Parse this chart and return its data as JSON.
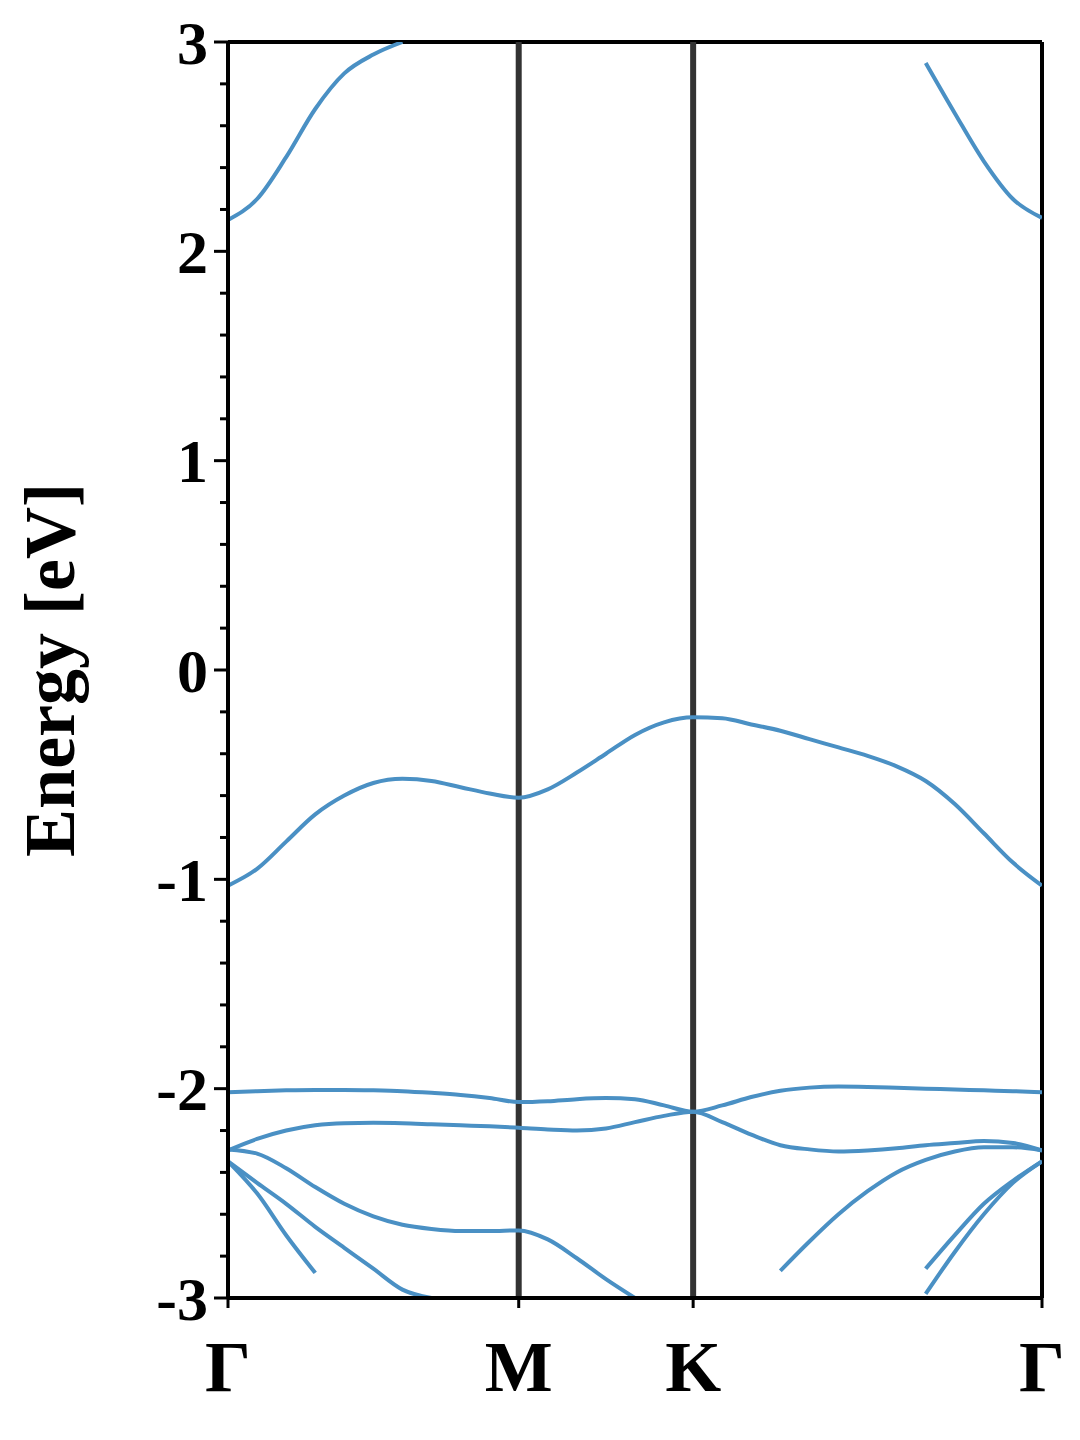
{
  "chart_data": {
    "type": "line",
    "ylabel": "Energy [eV]",
    "categories": [
      "Γ",
      null,
      null,
      null,
      null,
      null,
      null,
      null,
      null,
      null,
      "M",
      null,
      null,
      null,
      null,
      null,
      "K",
      null,
      null,
      null,
      null,
      null,
      null,
      null,
      null,
      null,
      null,
      null,
      "Γ"
    ],
    "ylim": [
      -3,
      3
    ],
    "yticks": [
      -3,
      {
        "value": -2.8,
        "label": null
      },
      {
        "value": -2.6,
        "label": null
      },
      {
        "value": -2.4,
        "label": null
      },
      {
        "value": -2.2,
        "label": null
      },
      -2,
      {
        "value": -1.8,
        "label": null
      },
      {
        "value": -1.6,
        "label": null
      },
      {
        "value": -1.4,
        "label": null
      },
      {
        "value": -1.2,
        "label": null
      },
      -1,
      {
        "value": -0.8,
        "label": null
      },
      {
        "value": -0.6,
        "label": null
      },
      {
        "value": -0.4,
        "label": null
      },
      {
        "value": -0.2,
        "label": null
      },
      0,
      {
        "value": 0.2,
        "label": null
      },
      {
        "value": 0.4,
        "label": null
      },
      {
        "value": 0.6,
        "label": null
      },
      {
        "value": 0.8,
        "label": null
      },
      1,
      {
        "value": 1.2,
        "label": null
      },
      {
        "value": 1.4,
        "label": null
      },
      {
        "value": 1.6,
        "label": null
      },
      {
        "value": 1.8,
        "label": null
      },
      2,
      {
        "value": 2.2,
        "label": null
      },
      {
        "value": 2.4,
        "label": null
      },
      {
        "value": 2.6,
        "label": null
      },
      {
        "value": 2.8,
        "label": null
      },
      3
    ],
    "grid": false,
    "legend": false,
    "marker": "none",
    "line_style": "solid",
    "ref_lines": [
      {
        "axis": "x",
        "value": "M",
        "color": "#333333"
      },
      {
        "axis": "x",
        "value": "K",
        "color": "#333333"
      }
    ],
    "series": [
      {
        "color": "#4a90c4",
        "values": [
          2.15,
          2.25,
          2.45,
          2.68,
          2.85,
          2.94,
          3.0,
          null,
          null,
          null,
          null,
          null,
          null,
          null,
          null,
          null,
          null,
          null,
          null,
          null,
          null,
          null,
          null,
          null,
          null,
          null,
          null,
          null,
          null
        ]
      },
      {
        "color": "#4a90c4",
        "values": [
          null,
          null,
          null,
          null,
          null,
          null,
          null,
          null,
          null,
          null,
          null,
          null,
          null,
          null,
          null,
          null,
          null,
          null,
          null,
          null,
          null,
          null,
          null,
          null,
          2.9,
          2.66,
          2.43,
          2.25,
          2.16
        ]
      },
      {
        "color": "#4a90c4",
        "values": [
          -1.03,
          -0.95,
          -0.82,
          -0.69,
          -0.6,
          -0.54,
          -0.52,
          -0.53,
          -0.56,
          -0.59,
          -0.61,
          -0.57,
          -0.49,
          -0.4,
          -0.31,
          -0.25,
          -0.226,
          -0.23,
          -0.26,
          -0.29,
          -0.33,
          -0.37,
          -0.41,
          -0.46,
          -0.53,
          -0.64,
          -0.78,
          -0.92,
          -1.03
        ]
      },
      {
        "color": "#4a90c4",
        "values": [
          -2.017,
          -2.012,
          -2.008,
          -2.006,
          -2.006,
          -2.008,
          -2.012,
          -2.02,
          -2.03,
          -2.045,
          -2.064,
          -2.06,
          -2.05,
          -2.045,
          -2.05,
          -2.08,
          -2.11,
          -2.08,
          -2.04,
          -2.01,
          -1.995,
          -1.99,
          -1.992,
          -1.996,
          -2.0,
          -2.004,
          -2.008,
          -2.012,
          -2.017
        ]
      },
      {
        "color": "#4a90c4",
        "values": [
          -2.295,
          -2.24,
          -2.2,
          -2.175,
          -2.165,
          -2.163,
          -2.165,
          -2.17,
          -2.175,
          -2.18,
          -2.187,
          -2.195,
          -2.2,
          -2.19,
          -2.16,
          -2.13,
          -2.11,
          -2.16,
          -2.22,
          -2.27,
          -2.29,
          -2.3,
          -2.295,
          -2.285,
          -2.27,
          -2.26,
          -2.25,
          -2.26,
          -2.295
        ]
      },
      {
        "color": "#4a90c4",
        "values": [
          -2.29,
          -2.31,
          -2.38,
          -2.47,
          -2.55,
          -2.61,
          -2.65,
          -2.67,
          -2.68,
          -2.68,
          -2.677,
          -2.72,
          -2.81,
          -2.91,
          -3.0,
          null,
          null,
          null,
          null,
          null,
          null,
          null,
          null,
          null,
          null,
          null,
          null,
          null,
          null
        ]
      },
      {
        "color": "#4a90c4",
        "values": [
          null,
          null,
          null,
          null,
          null,
          null,
          null,
          null,
          null,
          null,
          null,
          null,
          null,
          null,
          null,
          null,
          null,
          null,
          null,
          -2.87,
          -2.73,
          -2.6,
          -2.49,
          -2.4,
          -2.34,
          -2.3,
          -2.28,
          -2.28,
          -2.295
        ]
      },
      {
        "color": "#4a90c4",
        "values": [
          -2.347,
          -2.45,
          -2.55,
          -2.66,
          -2.76,
          -2.86,
          -2.96,
          -3.0,
          null,
          null,
          null,
          null,
          null,
          null,
          null,
          null,
          null,
          null,
          null,
          null,
          null,
          null,
          null,
          null,
          null,
          null,
          null,
          null,
          null
        ]
      },
      {
        "color": "#4a90c4",
        "values": [
          -2.347,
          -2.5,
          -2.7,
          -2.88,
          null,
          null,
          null,
          null,
          null,
          null,
          null,
          null,
          null,
          null,
          null,
          null,
          null,
          null,
          null,
          null,
          null,
          null,
          null,
          null,
          null,
          null,
          null,
          null,
          null
        ]
      },
      {
        "color": "#4a90c4",
        "values": [
          null,
          null,
          null,
          null,
          null,
          null,
          null,
          null,
          null,
          null,
          null,
          null,
          null,
          null,
          null,
          null,
          null,
          null,
          null,
          null,
          null,
          null,
          null,
          null,
          -2.86,
          -2.7,
          -2.55,
          -2.44,
          -2.347
        ]
      },
      {
        "color": "#4a90c4",
        "values": [
          null,
          null,
          null,
          null,
          null,
          null,
          null,
          null,
          null,
          null,
          null,
          null,
          null,
          null,
          null,
          null,
          null,
          null,
          null,
          null,
          null,
          null,
          null,
          null,
          -2.98,
          -2.78,
          -2.6,
          -2.45,
          -2.347
        ]
      }
    ]
  }
}
